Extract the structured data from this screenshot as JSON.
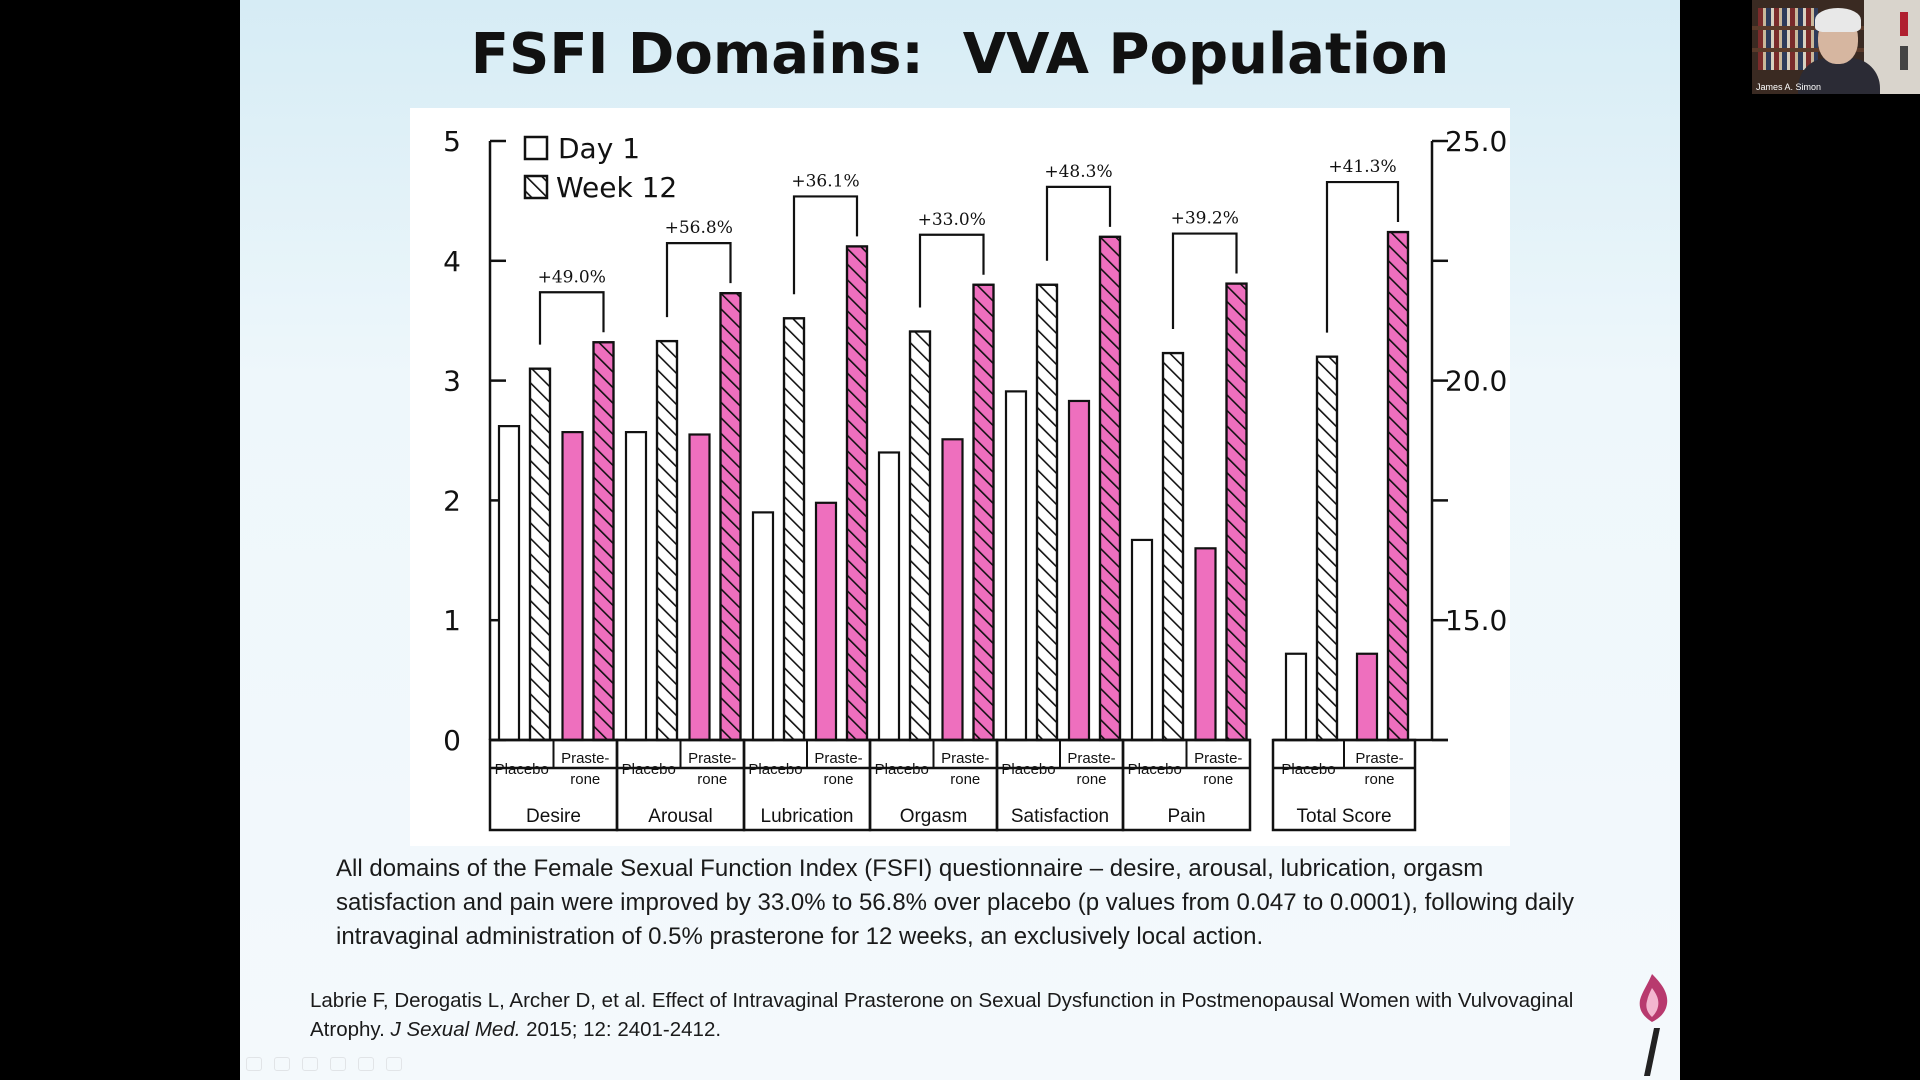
{
  "slide": {
    "title": "FSFI Domains:  VVA Population",
    "caption": "All domains of the Female Sexual Function Index (FSFI) questionnaire – desire, arousal, lubrication, orgasm satisfaction and pain were improved by 33.0% to 56.8% over placebo (p values from 0.047 to 0.0001), following daily intravaginal administration of 0.5% prasterone for 12 weeks, an exclusively local action.",
    "citation": {
      "part1": "Labrie F, Derogatis L, Archer D, et al. Effect of Intravaginal Prasterone on Sexual Dysfunction in Postmenopausal Women with Vulvovaginal Atrophy. ",
      "journal": "J Sexual Med.",
      "part2": " 2015; 12: 2401-2412."
    }
  },
  "webcam": {
    "participant_name": "James A. Simon"
  },
  "colors": {
    "placebo_fill": "#ffffff",
    "prasterone_fill": "#ee6fbe",
    "stroke": "#111111"
  },
  "chart_data": {
    "type": "bar",
    "legend": {
      "position": "top-left",
      "items": [
        "Day 1",
        "Week 12"
      ]
    },
    "left_axis": {
      "ylim": [
        0,
        5
      ],
      "ticks": [
        "0",
        "1",
        "2",
        "3",
        "4",
        "5"
      ]
    },
    "right_axis": {
      "ylim": [
        12.5,
        25.0
      ],
      "tick_labels": [
        "15.0",
        "20.0",
        "25.0"
      ]
    },
    "groups": [
      {
        "domain": "Desire",
        "axis": "left",
        "increase": "+49.0%",
        "treatments": [
          {
            "label": "Placebo",
            "day1": 2.62,
            "week12": 3.1
          },
          {
            "label": "Praste-rone",
            "day1": 2.57,
            "week12": 3.32
          }
        ]
      },
      {
        "domain": "Arousal",
        "axis": "left",
        "increase": "+56.8%",
        "treatments": [
          {
            "label": "Placebo",
            "day1": 2.57,
            "week12": 3.33
          },
          {
            "label": "Praste-rone",
            "day1": 2.55,
            "week12": 3.73
          }
        ]
      },
      {
        "domain": "Lubrication",
        "axis": "left",
        "increase": "+36.1%",
        "treatments": [
          {
            "label": "Placebo",
            "day1": 1.9,
            "week12": 3.52
          },
          {
            "label": "Praste-rone",
            "day1": 1.98,
            "week12": 4.12
          }
        ]
      },
      {
        "domain": "Orgasm",
        "axis": "left",
        "increase": "+33.0%",
        "treatments": [
          {
            "label": "Placebo",
            "day1": 2.4,
            "week12": 3.41
          },
          {
            "label": "Praste-rone",
            "day1": 2.51,
            "week12": 3.8
          }
        ]
      },
      {
        "domain": "Satisfaction",
        "axis": "left",
        "increase": "+48.3%",
        "treatments": [
          {
            "label": "Placebo",
            "day1": 2.91,
            "week12": 3.8
          },
          {
            "label": "Praste-rone",
            "day1": 2.83,
            "week12": 4.2
          }
        ]
      },
      {
        "domain": "Pain",
        "axis": "left",
        "increase": "+39.2%",
        "treatments": [
          {
            "label": "Placebo",
            "day1": 1.67,
            "week12": 3.23
          },
          {
            "label": "Praste-rone",
            "day1": 1.6,
            "week12": 3.81
          }
        ]
      },
      {
        "domain": "Total Score",
        "axis": "right",
        "increase": "+41.3%",
        "treatments": [
          {
            "label": "Placebo",
            "day1": 14.3,
            "week12": 20.5
          },
          {
            "label": "Praste-rone",
            "day1": 14.3,
            "week12": 23.1
          }
        ]
      }
    ]
  }
}
